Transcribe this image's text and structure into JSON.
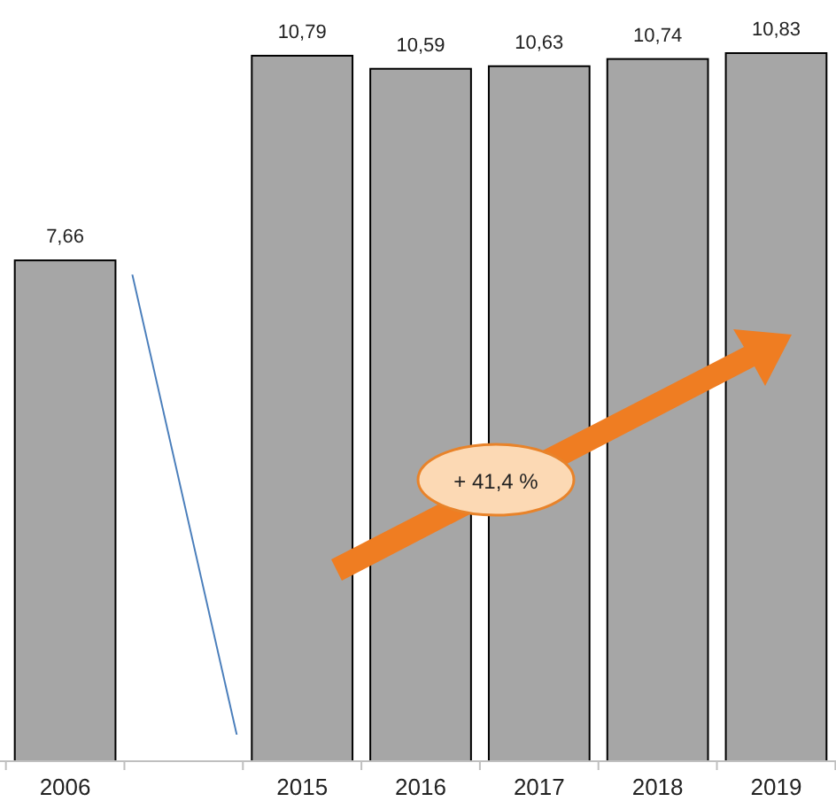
{
  "chart_data": {
    "type": "bar",
    "categories": [
      "2006",
      null,
      "2015",
      "2016",
      "2017",
      "2018",
      "2019"
    ],
    "values": [
      7.66,
      null,
      10.79,
      10.59,
      10.63,
      10.74,
      10.83
    ],
    "color": "#a6a6a6",
    "value_labels": [
      "7,66",
      null,
      "10,79",
      "10,59",
      "10,63",
      "10,74",
      "10,83"
    ],
    "annotations": [
      "+ 41,4 %"
    ]
  }
}
